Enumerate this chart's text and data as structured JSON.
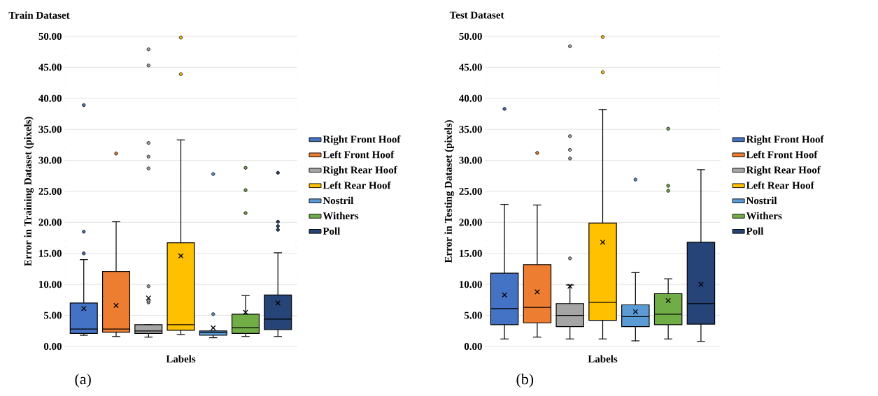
{
  "chart_data": [
    {
      "type": "box",
      "title": "Train Dataset",
      "xlabel": "Labels",
      "ylabel": "Error in Training Dataset (pixels)",
      "annotations": [
        "(a)"
      ],
      "categories": [
        null,
        null,
        null,
        null,
        null,
        null,
        null
      ],
      "series": [
        {
          "name": "Right Front Hoof",
          "color": "#4472c4",
          "boxes": [
            {
              "low": 1.8,
              "q1": 2.1,
              "median": 2.8,
              "q3": 7.0,
              "high": 14.0,
              "mean": 6.1,
              "outliers": [
                15.0,
                18.5,
                38.9
              ]
            },
            null,
            null,
            null,
            null,
            null,
            null
          ]
        },
        {
          "name": "Left Front Hoof",
          "color": "#ed7d31",
          "boxes": [
            null,
            {
              "low": 1.6,
              "q1": 2.3,
              "median": 2.8,
              "q3": 12.1,
              "high": 20.1,
              "mean": 6.6,
              "outliers": [
                31.1
              ]
            },
            null,
            null,
            null,
            null,
            null
          ]
        },
        {
          "name": "Right Rear Hoof",
          "color": "#a5a5a5",
          "boxes": [
            null,
            null,
            {
              "low": 1.5,
              "q1": 2.1,
              "median": 2.5,
              "q3": 3.5,
              "high": 3.5,
              "mean": 7.8,
              "outliers": [
                7.1,
                7.4,
                9.7,
                28.7,
                30.6,
                32.8,
                45.3,
                47.9
              ]
            },
            null,
            null,
            null,
            null
          ]
        },
        {
          "name": "Left Rear Hoof",
          "color": "#ffc000",
          "boxes": [
            null,
            null,
            null,
            {
              "low": 1.9,
              "q1": 2.6,
              "median": 3.5,
              "q3": 16.7,
              "high": 33.3,
              "mean": 14.6,
              "outliers": [
                43.9,
                49.8
              ]
            },
            null,
            null,
            null
          ]
        },
        {
          "name": "Nostril",
          "color": "#5b9bd5",
          "boxes": [
            null,
            null,
            null,
            null,
            {
              "low": 1.4,
              "q1": 1.8,
              "median": 2.2,
              "q3": 2.5,
              "high": 2.5,
              "mean": 3.0,
              "outliers": [
                5.2,
                27.8
              ]
            },
            null,
            null
          ]
        },
        {
          "name": "Withers",
          "color": "#70ad47",
          "boxes": [
            null,
            null,
            null,
            null,
            null,
            {
              "low": 1.6,
              "q1": 2.1,
              "median": 3.0,
              "q3": 5.2,
              "high": 8.2,
              "mean": 5.5,
              "outliers": [
                21.5,
                25.2,
                28.8
              ]
            },
            null
          ]
        },
        {
          "name": "Poll",
          "color": "#264478",
          "boxes": [
            null,
            null,
            null,
            null,
            null,
            null,
            {
              "low": 1.6,
              "q1": 2.7,
              "median": 4.4,
              "q3": 8.3,
              "high": 15.1,
              "mean": 7.0,
              "outliers": [
                18.8,
                19.4,
                20.1,
                28.0
              ]
            }
          ]
        }
      ],
      "ylim": [
        0,
        50
      ],
      "yticks": [
        {
          "value": 0,
          "label": "0.00"
        },
        {
          "value": 5,
          "label": "5.00"
        },
        {
          "value": 10,
          "label": "10.00"
        },
        {
          "value": 15,
          "label": "15.00"
        },
        {
          "value": 20,
          "label": "20.00"
        },
        {
          "value": 25,
          "label": "25.00"
        },
        {
          "value": 30,
          "label": "30.00"
        },
        {
          "value": 35,
          "label": "35.00"
        },
        {
          "value": 40,
          "label": "40.00"
        },
        {
          "value": 45,
          "label": "45.00"
        },
        {
          "value": 50,
          "label": "50.00"
        }
      ],
      "grid": "y",
      "legend": "right",
      "tick_labels": "y"
    },
    {
      "type": "box",
      "title": "Test Dataset",
      "xlabel": "Labels",
      "ylabel": "Error in Testing Dataset (pixels)",
      "annotations": [
        "(b)"
      ],
      "categories": [
        null,
        null,
        null,
        null,
        null,
        null,
        null
      ],
      "series": [
        {
          "name": "Right Front Hoof",
          "color": "#4472c4",
          "boxes": [
            {
              "low": 1.2,
              "q1": 3.5,
              "median": 6.1,
              "q3": 11.8,
              "high": 22.9,
              "mean": 8.3,
              "outliers": [
                38.3
              ]
            },
            null,
            null,
            null,
            null,
            null,
            null
          ]
        },
        {
          "name": "Left Front Hoof",
          "color": "#ed7d31",
          "boxes": [
            null,
            {
              "low": 1.5,
              "q1": 3.8,
              "median": 6.3,
              "q3": 13.2,
              "high": 22.8,
              "mean": 8.8,
              "outliers": [
                31.2
              ]
            },
            null,
            null,
            null,
            null,
            null
          ]
        },
        {
          "name": "Right Rear Hoof",
          "color": "#a5a5a5",
          "boxes": [
            null,
            null,
            {
              "low": 1.2,
              "q1": 3.2,
              "median": 5.0,
              "q3": 6.9,
              "high": 9.9,
              "mean": 9.7,
              "outliers": [
                14.2,
                30.3,
                31.7,
                33.9,
                48.4
              ]
            },
            null,
            null,
            null,
            null
          ]
        },
        {
          "name": "Left Rear Hoof",
          "color": "#ffc000",
          "boxes": [
            null,
            null,
            null,
            {
              "low": 1.2,
              "q1": 4.2,
              "median": 7.1,
              "q3": 19.9,
              "high": 38.2,
              "mean": 16.8,
              "outliers": [
                44.2,
                49.9
              ]
            },
            null,
            null,
            null
          ]
        },
        {
          "name": "Nostril",
          "color": "#5b9bd5",
          "boxes": [
            null,
            null,
            null,
            null,
            {
              "low": 0.9,
              "q1": 3.2,
              "median": 4.8,
              "q3": 6.7,
              "high": 11.9,
              "mean": 5.6,
              "outliers": [
                26.9
              ]
            },
            null,
            null
          ]
        },
        {
          "name": "Withers",
          "color": "#70ad47",
          "boxes": [
            null,
            null,
            null,
            null,
            null,
            {
              "low": 1.2,
              "q1": 3.5,
              "median": 5.2,
              "q3": 8.5,
              "high": 10.9,
              "mean": 7.4,
              "outliers": [
                25.1,
                25.9,
                35.1
              ]
            },
            null
          ]
        },
        {
          "name": "Poll",
          "color": "#264478",
          "boxes": [
            null,
            null,
            null,
            null,
            null,
            null,
            {
              "low": 0.8,
              "q1": 3.6,
              "median": 6.9,
              "q3": 16.8,
              "high": 28.5,
              "mean": 10.0
            }
          ]
        }
      ],
      "ylim": [
        0,
        50
      ],
      "yticks": [
        {
          "value": 0,
          "label": "0.00"
        },
        {
          "value": 5,
          "label": "5.00"
        },
        {
          "value": 10,
          "label": "10.00"
        },
        {
          "value": 15,
          "label": "15.00"
        },
        {
          "value": 20,
          "label": "20.00"
        },
        {
          "value": 25,
          "label": "25.00"
        },
        {
          "value": 30,
          "label": "30.00"
        },
        {
          "value": 35,
          "label": "35.00"
        },
        {
          "value": 40,
          "label": "40.00"
        },
        {
          "value": 45,
          "label": "45.00"
        },
        {
          "value": 50,
          "label": "50.00"
        }
      ],
      "grid": "y",
      "legend": "right",
      "tick_labels": "y"
    }
  ]
}
